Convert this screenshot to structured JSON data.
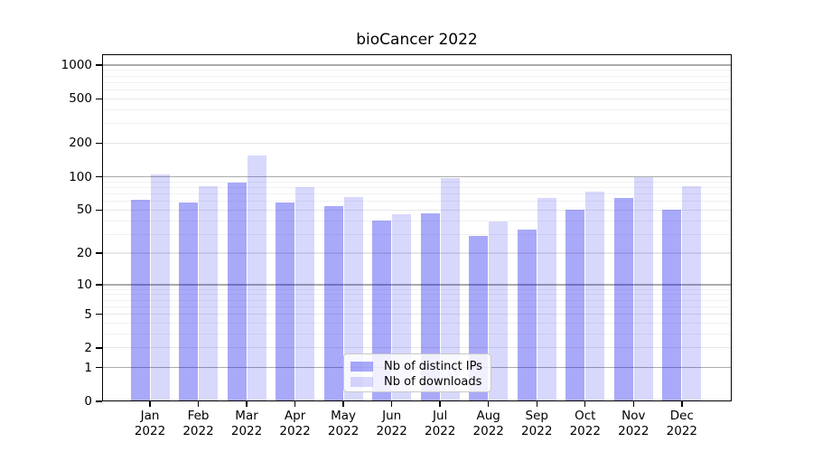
{
  "title": "bioCancer 2022",
  "colors": {
    "ips_bar": "rgba(10,10,240,0.35)",
    "downloads_bar": "rgba(10,10,240,0.16)",
    "grid_decade": "#ababab",
    "grid_tick": "#e7e7e7",
    "grid_minor": "#f1f1f1",
    "axis": "#000000",
    "legend_border": "#c9c9c9"
  },
  "legend": {
    "items": [
      {
        "key": "ips",
        "label": "Nb of distinct IPs"
      },
      {
        "key": "downloads",
        "label": "Nb of downloads"
      }
    ]
  },
  "x_axis": {
    "months": [
      "Jan",
      "Feb",
      "Mar",
      "Apr",
      "May",
      "Jun",
      "Jul",
      "Aug",
      "Sep",
      "Oct",
      "Nov",
      "Dec"
    ],
    "year": "2022"
  },
  "y_axis": {
    "tick_labels": [
      "0",
      "1",
      "2",
      "5",
      "10",
      "20",
      "50",
      "100",
      "200",
      "500",
      "1000"
    ],
    "tick_values": [
      0,
      1,
      2,
      5,
      10,
      20,
      50,
      100,
      200,
      500,
      1000
    ],
    "minor_values": [
      3,
      4,
      6,
      7,
      8,
      9,
      30,
      40,
      60,
      70,
      80,
      90,
      300,
      400,
      600,
      700,
      800,
      900
    ],
    "decade_values": [
      1,
      10,
      100,
      1000
    ]
  },
  "chart_data": {
    "type": "bar",
    "title": "bioCancer 2022",
    "categories": [
      "Jan 2022",
      "Feb 2022",
      "Mar 2022",
      "Apr 2022",
      "May 2022",
      "Jun 2022",
      "Jul 2022",
      "Aug 2022",
      "Sep 2022",
      "Oct 2022",
      "Nov 2022",
      "Dec 2022"
    ],
    "series": [
      {
        "name": "Nb of distinct IPs",
        "values": [
          62,
          58,
          88,
          58,
          54,
          40,
          47,
          29,
          33,
          50,
          64,
          50
        ]
      },
      {
        "name": "Nb of downloads",
        "values": [
          104,
          82,
          155,
          81,
          66,
          46,
          98,
          39,
          64,
          74,
          100,
          82
        ]
      }
    ],
    "yscale": "log1p",
    "yticks": [
      0,
      1,
      2,
      5,
      10,
      20,
      50,
      100,
      200,
      500,
      1000
    ],
    "ylim": [
      0,
      1250
    ],
    "grid": "horizontal",
    "legend_position": "lower-center"
  }
}
